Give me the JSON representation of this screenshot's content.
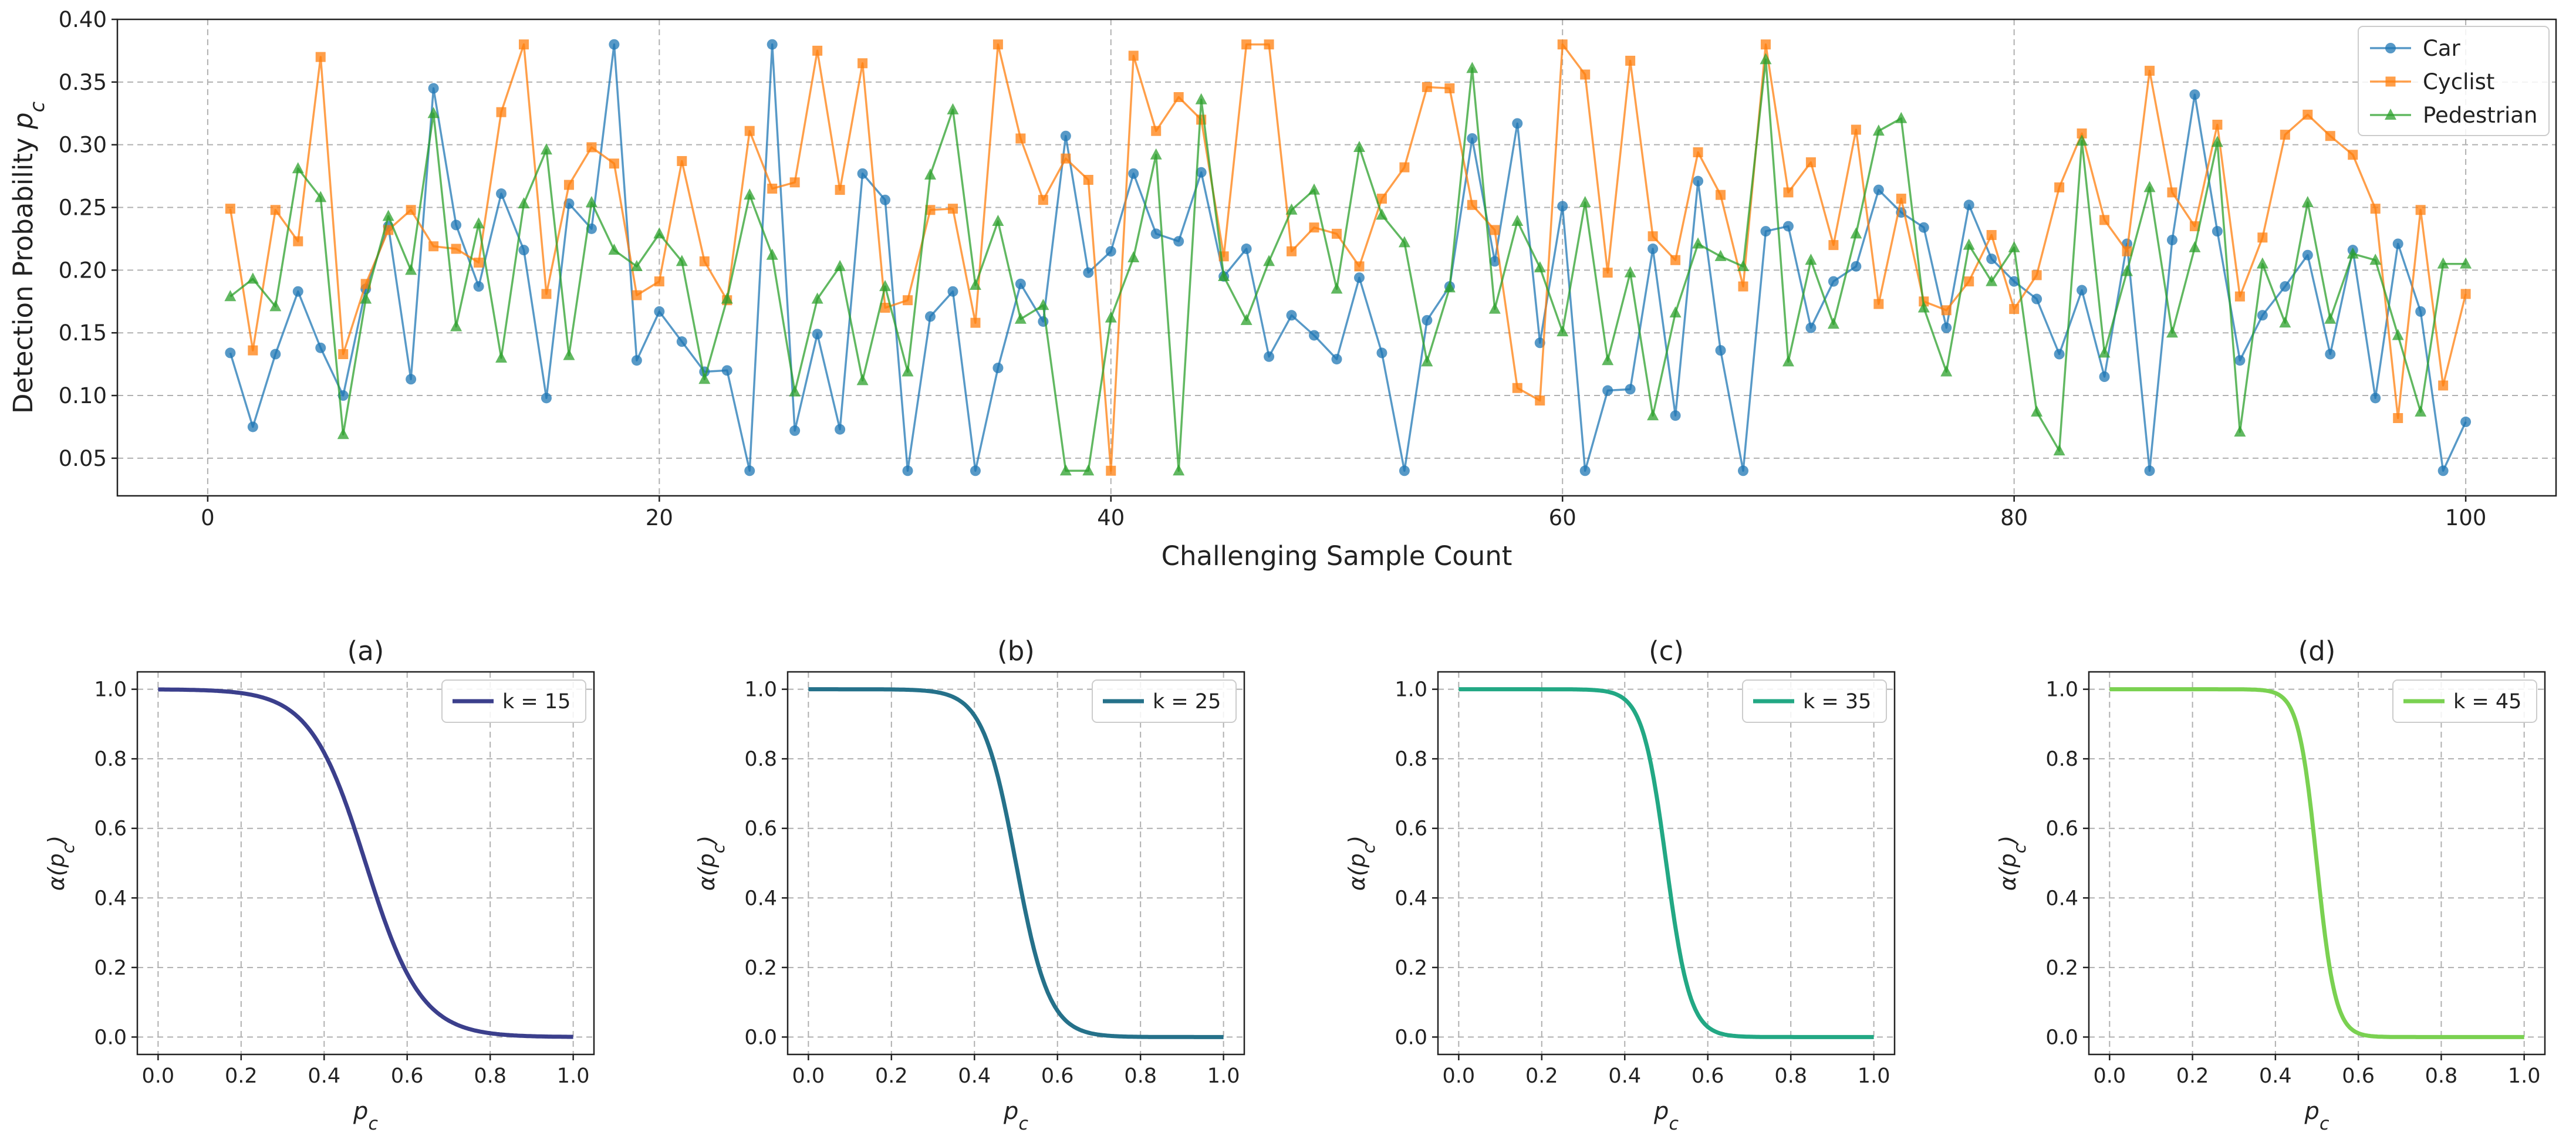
{
  "chart_data": [
    {
      "type": "line",
      "title": "",
      "xlabel": "Challenging Sample Count",
      "ylabel": "Detection Probability p_c",
      "ylabel_main": "Detection Probability ",
      "ylabel_var": "p",
      "ylabel_sub": "c",
      "xlim": [
        -4,
        104
      ],
      "ylim": [
        0.02,
        0.4
      ],
      "xticks": [
        0,
        20,
        40,
        60,
        80,
        100
      ],
      "xtick_labels": [
        "0",
        "20",
        "40",
        "60",
        "80",
        "100"
      ],
      "yticks": [
        0.05,
        0.1,
        0.15,
        0.2,
        0.25,
        0.3,
        0.35,
        0.4
      ],
      "ytick_labels": [
        "0.05",
        "0.10",
        "0.15",
        "0.20",
        "0.25",
        "0.30",
        "0.35",
        "0.40"
      ],
      "grid": true,
      "legend_position": "top-right",
      "x": [
        1,
        2,
        3,
        4,
        5,
        6,
        7,
        8,
        9,
        10,
        11,
        12,
        13,
        14,
        15,
        16,
        17,
        18,
        19,
        20,
        21,
        22,
        23,
        24,
        25,
        26,
        27,
        28,
        29,
        30,
        31,
        32,
        33,
        34,
        35,
        36,
        37,
        38,
        39,
        40,
        41,
        42,
        43,
        44,
        45,
        46,
        47,
        48,
        49,
        50,
        51,
        52,
        53,
        54,
        55,
        56,
        57,
        58,
        59,
        60,
        61,
        62,
        63,
        64,
        65,
        66,
        67,
        68,
        69,
        70,
        71,
        72,
        73,
        74,
        75,
        76,
        77,
        78,
        79,
        80,
        81,
        82,
        83,
        84,
        85,
        86,
        87,
        88,
        89,
        90,
        91,
        92,
        93,
        94,
        95,
        96,
        97,
        98,
        99,
        100
      ],
      "series": [
        {
          "name": "Car",
          "color": "#1f77b4",
          "marker": "circle",
          "values": [
            0.134,
            0.075,
            0.133,
            0.183,
            0.138,
            0.1,
            0.185,
            0.235,
            0.113,
            0.345,
            0.236,
            0.187,
            0.261,
            0.216,
            0.098,
            0.253,
            0.233,
            0.38,
            0.128,
            0.167,
            0.143,
            0.119,
            0.12,
            0.04,
            0.38,
            0.072,
            0.149,
            0.073,
            0.277,
            0.256,
            0.04,
            0.163,
            0.183,
            0.04,
            0.122,
            0.189,
            0.159,
            0.307,
            0.198,
            0.215,
            0.277,
            0.229,
            0.223,
            0.278,
            0.195,
            0.217,
            0.131,
            0.164,
            0.148,
            0.129,
            0.194,
            0.134,
            0.04,
            0.16,
            0.187,
            0.305,
            0.207,
            0.317,
            0.142,
            0.251,
            0.04,
            0.104,
            0.105,
            0.217,
            0.084,
            0.271,
            0.136,
            0.04,
            0.231,
            0.235,
            0.154,
            0.191,
            0.203,
            0.264,
            0.246,
            0.234,
            0.154,
            0.252,
            0.209,
            0.191,
            0.177,
            0.133,
            0.184,
            0.115,
            0.221,
            0.04,
            0.224,
            0.34,
            0.231,
            0.128,
            0.164,
            0.187,
            0.212,
            0.133,
            0.216,
            0.098,
            0.221,
            0.167,
            0.04,
            0.079
          ]
        },
        {
          "name": "Cyclist",
          "color": "#ff7f0e",
          "marker": "square",
          "values": [
            0.249,
            0.136,
            0.248,
            0.223,
            0.37,
            0.133,
            0.189,
            0.232,
            0.248,
            0.219,
            0.217,
            0.206,
            0.326,
            0.38,
            0.181,
            0.268,
            0.298,
            0.285,
            0.18,
            0.191,
            0.287,
            0.207,
            0.176,
            0.311,
            0.265,
            0.27,
            0.375,
            0.264,
            0.365,
            0.17,
            0.176,
            0.248,
            0.249,
            0.158,
            0.38,
            0.305,
            0.256,
            0.289,
            0.272,
            0.04,
            0.371,
            0.311,
            0.338,
            0.32,
            0.211,
            0.38,
            0.38,
            0.215,
            0.234,
            0.229,
            0.203,
            0.257,
            0.282,
            0.346,
            0.345,
            0.252,
            0.232,
            0.106,
            0.096,
            0.38,
            0.356,
            0.198,
            0.367,
            0.227,
            0.208,
            0.294,
            0.26,
            0.187,
            0.38,
            0.262,
            0.286,
            0.22,
            0.312,
            0.173,
            0.257,
            0.175,
            0.168,
            0.191,
            0.228,
            0.169,
            0.196,
            0.266,
            0.309,
            0.24,
            0.215,
            0.359,
            0.262,
            0.235,
            0.316,
            0.179,
            0.226,
            0.308,
            0.324,
            0.307,
            0.292,
            0.249,
            0.082,
            0.248,
            0.108,
            0.181
          ]
        },
        {
          "name": "Pedestrian",
          "color": "#2ca02c",
          "marker": "triangle",
          "values": [
            0.179,
            0.193,
            0.171,
            0.281,
            0.258,
            0.069,
            0.177,
            0.243,
            0.2,
            0.325,
            0.155,
            0.237,
            0.13,
            0.253,
            0.296,
            0.132,
            0.254,
            0.216,
            0.203,
            0.229,
            0.207,
            0.113,
            0.177,
            0.26,
            0.212,
            0.103,
            0.177,
            0.203,
            0.112,
            0.187,
            0.119,
            0.276,
            0.328,
            0.188,
            0.239,
            0.161,
            0.172,
            0.04,
            0.04,
            0.162,
            0.21,
            0.292,
            0.04,
            0.336,
            0.195,
            0.16,
            0.207,
            0.248,
            0.264,
            0.185,
            0.298,
            0.244,
            0.222,
            0.127,
            0.186,
            0.361,
            0.169,
            0.239,
            0.202,
            0.151,
            0.254,
            0.128,
            0.198,
            0.084,
            0.166,
            0.221,
            0.211,
            0.203,
            0.368,
            0.127,
            0.208,
            0.157,
            0.229,
            0.311,
            0.321,
            0.17,
            0.119,
            0.22,
            0.191,
            0.218,
            0.087,
            0.056,
            0.303,
            0.134,
            0.199,
            0.266,
            0.15,
            0.218,
            0.302,
            0.071,
            0.205,
            0.158,
            0.254,
            0.161,
            0.213,
            0.208,
            0.148,
            0.087,
            0.205,
            0.205
          ]
        }
      ]
    },
    {
      "type": "line",
      "panel": "(a)",
      "title": "(a)",
      "xlabel": "p_c",
      "ylabel": "α(p_c)",
      "xlim": [
        -0.05,
        1.05
      ],
      "ylim": [
        -0.05,
        1.05
      ],
      "xticks": [
        0,
        0.2,
        0.4,
        0.6,
        0.8,
        1.0
      ],
      "xtick_labels": [
        "0.0",
        "0.2",
        "0.4",
        "0.6",
        "0.8",
        "1.0"
      ],
      "yticks": [
        0,
        0.2,
        0.4,
        0.6,
        0.8,
        1.0
      ],
      "ytick_labels": [
        "0.0",
        "0.2",
        "0.4",
        "0.6",
        "0.8",
        "1.0"
      ],
      "grid": true,
      "legend_position": "top-right",
      "formula": "alpha(p) = 1 / (1 + exp(k * (p - 0.5)))",
      "k": 15,
      "series": [
        {
          "name": "k = 15",
          "color": "#3b3f8c"
        }
      ]
    },
    {
      "type": "line",
      "panel": "(b)",
      "title": "(b)",
      "xlabel": "p_c",
      "ylabel": "α(p_c)",
      "xlim": [
        -0.05,
        1.05
      ],
      "ylim": [
        -0.05,
        1.05
      ],
      "xticks": [
        0,
        0.2,
        0.4,
        0.6,
        0.8,
        1.0
      ],
      "xtick_labels": [
        "0.0",
        "0.2",
        "0.4",
        "0.6",
        "0.8",
        "1.0"
      ],
      "yticks": [
        0,
        0.2,
        0.4,
        0.6,
        0.8,
        1.0
      ],
      "ytick_labels": [
        "0.0",
        "0.2",
        "0.4",
        "0.6",
        "0.8",
        "1.0"
      ],
      "grid": true,
      "legend_position": "top-right",
      "formula": "alpha(p) = 1 / (1 + exp(k * (p - 0.5)))",
      "k": 25,
      "series": [
        {
          "name": "k = 25",
          "color": "#25718a"
        }
      ]
    },
    {
      "type": "line",
      "panel": "(c)",
      "title": "(c)",
      "xlabel": "p_c",
      "ylabel": "α(p_c)",
      "xlim": [
        -0.05,
        1.05
      ],
      "ylim": [
        -0.05,
        1.05
      ],
      "xticks": [
        0,
        0.2,
        0.4,
        0.6,
        0.8,
        1.0
      ],
      "xtick_labels": [
        "0.0",
        "0.2",
        "0.4",
        "0.6",
        "0.8",
        "1.0"
      ],
      "yticks": [
        0,
        0.2,
        0.4,
        0.6,
        0.8,
        1.0
      ],
      "ytick_labels": [
        "0.0",
        "0.2",
        "0.4",
        "0.6",
        "0.8",
        "1.0"
      ],
      "grid": true,
      "legend_position": "top-right",
      "formula": "alpha(p) = 1 / (1 + exp(k * (p - 0.5)))",
      "k": 35,
      "series": [
        {
          "name": "k = 35",
          "color": "#22a884"
        }
      ]
    },
    {
      "type": "line",
      "panel": "(d)",
      "title": "(d)",
      "xlabel": "p_c",
      "ylabel": "α(p_c)",
      "xlim": [
        -0.05,
        1.05
      ],
      "ylim": [
        -0.05,
        1.05
      ],
      "xticks": [
        0,
        0.2,
        0.4,
        0.6,
        0.8,
        1.0
      ],
      "xtick_labels": [
        "0.0",
        "0.2",
        "0.4",
        "0.6",
        "0.8",
        "1.0"
      ],
      "yticks": [
        0,
        0.2,
        0.4,
        0.6,
        0.8,
        1.0
      ],
      "ytick_labels": [
        "0.0",
        "0.2",
        "0.4",
        "0.6",
        "0.8",
        "1.0"
      ],
      "grid": true,
      "legend_position": "top-right",
      "formula": "alpha(p) = 1 / (1 + exp(k * (p - 0.5)))",
      "k": 45,
      "series": [
        {
          "name": "k = 45",
          "color": "#7ad151"
        }
      ]
    }
  ]
}
